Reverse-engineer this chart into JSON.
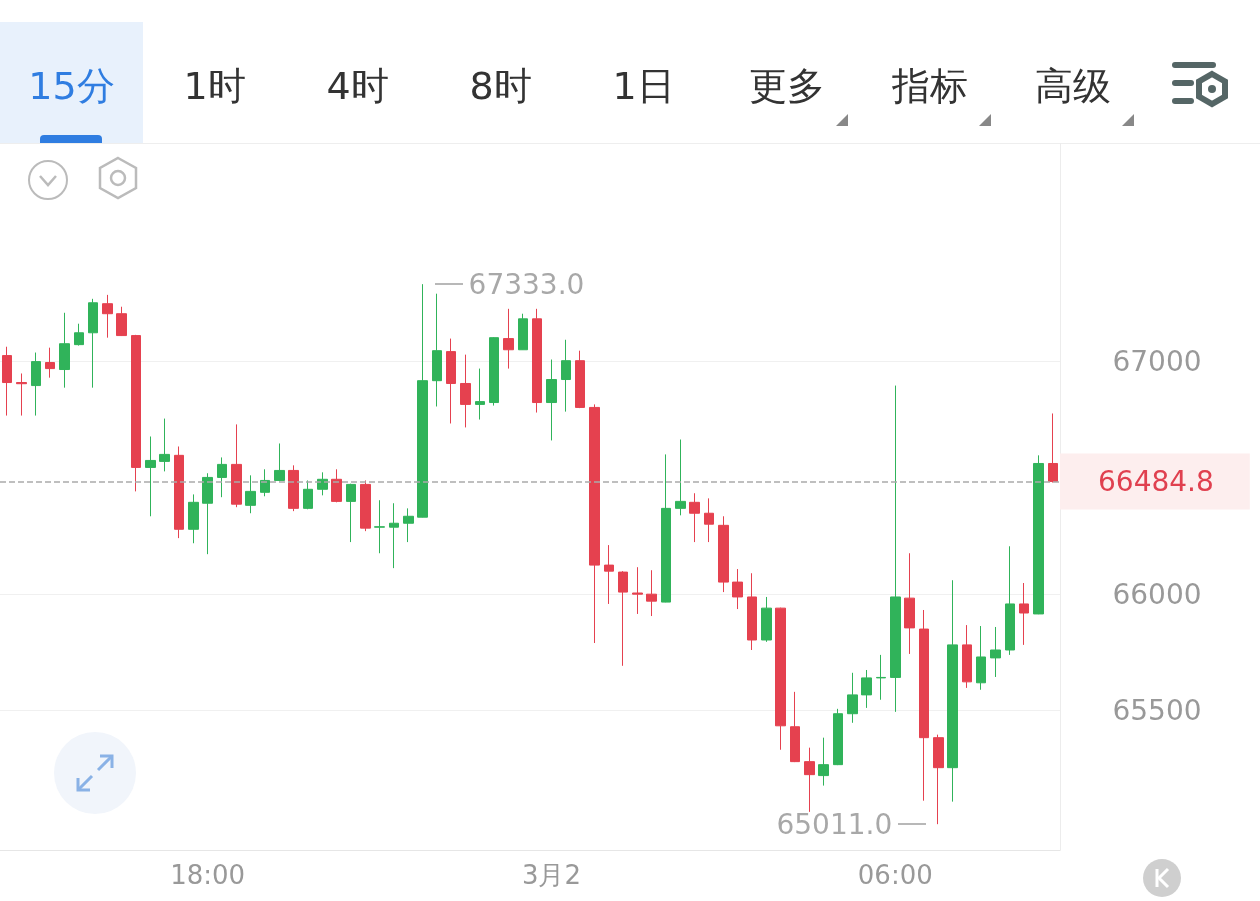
{
  "chart_data": {
    "type": "candlestick",
    "categories": [
      null,
      null,
      null,
      null,
      null,
      null,
      null,
      null,
      null,
      null,
      null,
      null,
      null,
      null,
      "18:00",
      null,
      null,
      null,
      null,
      null,
      null,
      null,
      null,
      null,
      null,
      null,
      null,
      null,
      null,
      null,
      null,
      null,
      null,
      null,
      null,
      null,
      null,
      null,
      "3月2",
      null,
      null,
      null,
      null,
      null,
      null,
      null,
      null,
      null,
      null,
      null,
      null,
      null,
      null,
      null,
      null,
      null,
      null,
      null,
      null,
      null,
      null,
      null,
      "06:00",
      null,
      null,
      null,
      null,
      null,
      null,
      null,
      null,
      null,
      null,
      null
    ],
    "ohlc": [
      [
        67026,
        67064,
        66768,
        66910
      ],
      [
        66910,
        66949,
        66768,
        66905
      ],
      [
        66897,
        67039,
        66768,
        67000
      ],
      [
        66996,
        67060,
        66931,
        66970
      ],
      [
        66966,
        67210,
        66888,
        67077
      ],
      [
        67073,
        67163,
        67069,
        67124
      ],
      [
        67124,
        67270,
        66888,
        67253
      ],
      [
        67249,
        67287,
        67103,
        67206
      ],
      [
        67206,
        67236,
        67110,
        67112
      ],
      [
        67112,
        67115,
        66442,
        66545
      ],
      [
        66545,
        66678,
        66335,
        66575
      ],
      [
        66571,
        66755,
        66528,
        66601
      ],
      [
        66597,
        66635,
        66241,
        66279
      ],
      [
        66279,
        66429,
        66219,
        66395
      ],
      [
        66391,
        66520,
        66172,
        66502
      ],
      [
        66502,
        66588,
        66417,
        66558
      ],
      [
        66558,
        66730,
        66374,
        66387
      ],
      [
        66382,
        66511,
        66348,
        66442
      ],
      [
        66438,
        66537,
        66421,
        66489
      ],
      [
        66489,
        66648,
        66485,
        66532
      ],
      [
        66532,
        66554,
        66357,
        66369
      ],
      [
        66369,
        66489,
        66365,
        66451
      ],
      [
        66451,
        66524,
        66425,
        66494
      ],
      [
        66494,
        66537,
        66395,
        66399
      ],
      [
        66399,
        66475,
        66224,
        66472
      ],
      [
        66472,
        66489,
        66271,
        66284
      ],
      [
        66288,
        66404,
        66176,
        66290
      ],
      [
        66288,
        66391,
        66112,
        66305
      ],
      [
        66305,
        66369,
        66224,
        66335
      ],
      [
        66331,
        67333,
        66330,
        66918
      ],
      [
        66918,
        67292,
        66807,
        67047
      ],
      [
        67043,
        67099,
        66734,
        66906
      ],
      [
        66906,
        67030,
        66717,
        66816
      ],
      [
        66816,
        66970,
        66751,
        66828
      ],
      [
        66824,
        67105,
        66811,
        67103
      ],
      [
        67099,
        67227,
        66970,
        67051
      ],
      [
        67051,
        67206,
        67050,
        67184
      ],
      [
        67184,
        67227,
        66781,
        66824
      ],
      [
        66824,
        67009,
        66661,
        66923
      ],
      [
        66923,
        67094,
        66785,
        67004
      ],
      [
        67004,
        67047,
        66800,
        66803
      ],
      [
        66803,
        66816,
        65790,
        66125
      ],
      [
        66125,
        66211,
        65958,
        66099
      ],
      [
        66095,
        66099,
        65692,
        66009
      ],
      [
        66005,
        66116,
        65915,
        66000
      ],
      [
        66000,
        66103,
        65906,
        65970
      ],
      [
        65966,
        66601,
        65965,
        66369
      ],
      [
        66369,
        66665,
        66339,
        66399
      ],
      [
        66395,
        66434,
        66224,
        66348
      ],
      [
        66348,
        66412,
        66224,
        66301
      ],
      [
        66296,
        66335,
        66009,
        66052
      ],
      [
        66052,
        66108,
        65936,
        65988
      ],
      [
        65988,
        66090,
        65760,
        65803
      ],
      [
        65803,
        65988,
        65795,
        65940
      ],
      [
        65940,
        65942,
        65331,
        65434
      ],
      [
        65430,
        65580,
        65278,
        65280
      ],
      [
        65280,
        65340,
        65064,
        65224
      ],
      [
        65220,
        65383,
        65177,
        65267
      ],
      [
        65267,
        65507,
        65265,
        65486
      ],
      [
        65486,
        65662,
        65447,
        65567
      ],
      [
        65567,
        65674,
        65511,
        65640
      ],
      [
        65640,
        65739,
        65546,
        65642
      ],
      [
        65642,
        66897,
        65494,
        65988
      ],
      [
        65983,
        66176,
        65743,
        65855
      ],
      [
        65850,
        65932,
        65112,
        65383
      ],
      [
        65383,
        65396,
        65011,
        65254
      ],
      [
        65254,
        66060,
        65108,
        65782
      ],
      [
        65782,
        65867,
        65597,
        65623
      ],
      [
        65619,
        65863,
        65589,
        65730
      ],
      [
        65726,
        65859,
        65644,
        65760
      ],
      [
        65760,
        66206,
        65739,
        65958
      ],
      [
        65958,
        66048,
        65782,
        65919
      ],
      [
        65915,
        66597,
        65914,
        66562
      ],
      [
        66562,
        66777,
        66480,
        66484.8
      ]
    ],
    "colors": [
      "#e5414f",
      "#e5414f",
      "#30b35a",
      "#e5414f",
      "#30b35a",
      "#30b35a",
      "#30b35a",
      "#e5414f",
      "#e5414f",
      "#e5414f",
      "#30b35a",
      "#30b35a",
      "#e5414f",
      "#30b35a",
      "#30b35a",
      "#30b35a",
      "#e5414f",
      "#30b35a",
      "#30b35a",
      "#30b35a",
      "#e5414f",
      "#30b35a",
      "#30b35a",
      "#e5414f",
      "#30b35a",
      "#e5414f",
      "#30b35a",
      "#30b35a",
      "#30b35a",
      "#30b35a",
      "#30b35a",
      "#e5414f",
      "#e5414f",
      "#30b35a",
      "#30b35a",
      "#e5414f",
      "#30b35a",
      "#e5414f",
      "#30b35a",
      "#30b35a",
      "#e5414f",
      "#e5414f",
      "#e5414f",
      "#e5414f",
      "#e5414f",
      "#e5414f",
      "#30b35a",
      "#30b35a",
      "#e5414f",
      "#e5414f",
      "#e5414f",
      "#e5414f",
      "#e5414f",
      "#30b35a",
      "#e5414f",
      "#e5414f",
      "#e5414f",
      "#30b35a",
      "#30b35a",
      "#30b35a",
      "#30b35a",
      "#30b35a",
      "#30b35a",
      "#e5414f",
      "#e5414f",
      "#e5414f",
      "#30b35a",
      "#e5414f",
      "#30b35a",
      "#30b35a",
      "#30b35a",
      "#e5414f",
      "#30b35a",
      "#e5414f"
    ],
    "ylim": [
      64900,
      67940
    ],
    "yticks": [
      65500,
      66000,
      67000
    ],
    "grid": "y",
    "ref_lines": [
      {
        "axis": "y",
        "value": 66484.8,
        "label": "66484.8",
        "color": "#aaaaaa",
        "line_style": "dashed"
      }
    ],
    "annotations": [
      "15分",
      "1时",
      "4时",
      "8时",
      "1日",
      "更多",
      "指标",
      "高级",
      "67333.0",
      "65011.0"
    ]
  }
}
